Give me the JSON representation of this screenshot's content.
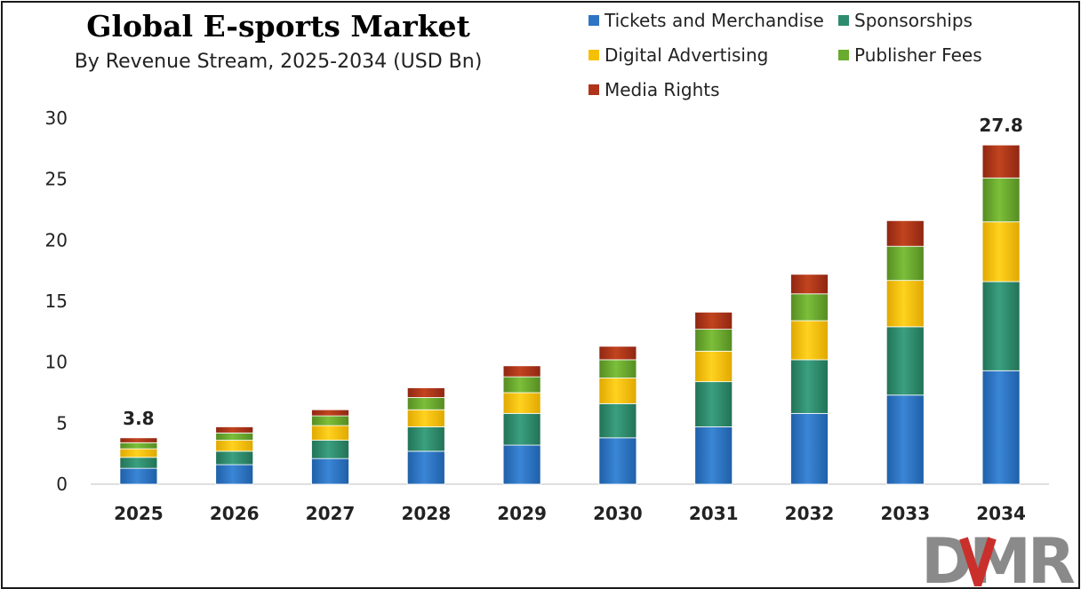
{
  "header": {
    "title": "Global E-sports Market",
    "subtitle": "By Revenue Stream, 2025-2034 (USD Bn)"
  },
  "logo": {
    "text": "DMR"
  },
  "colors": {
    "tickets": "#2e75c4",
    "sponsorships": "#2e8c6e",
    "digital": "#f5c000",
    "publisher": "#6aaa2e",
    "media": "#b0341a"
  },
  "chart_data": {
    "type": "bar",
    "stacked": true,
    "title": "Global E-sports Market",
    "subtitle": "By Revenue Stream, 2025-2034 (USD Bn)",
    "categories": [
      "2025",
      "2026",
      "2027",
      "2028",
      "2029",
      "2030",
      "2031",
      "2032",
      "2033",
      "2034"
    ],
    "series": [
      {
        "name": "Tickets and Merchandise",
        "color": "#2e75c4",
        "values": [
          1.3,
          1.6,
          2.1,
          2.7,
          3.2,
          3.8,
          4.7,
          5.8,
          7.3,
          9.3
        ]
      },
      {
        "name": "Sponsorships",
        "color": "#2e8c6e",
        "values": [
          0.9,
          1.1,
          1.5,
          2.0,
          2.6,
          2.8,
          3.7,
          4.4,
          5.6,
          7.3
        ]
      },
      {
        "name": "Digital Advertising",
        "color": "#f5c000",
        "values": [
          0.7,
          0.9,
          1.2,
          1.4,
          1.7,
          2.1,
          2.5,
          3.2,
          3.8,
          4.9
        ]
      },
      {
        "name": "Publisher Fees",
        "color": "#6aaa2e",
        "values": [
          0.5,
          0.6,
          0.8,
          1.0,
          1.3,
          1.5,
          1.8,
          2.2,
          2.8,
          3.6
        ]
      },
      {
        "name": "Media Rights",
        "color": "#b0341a",
        "values": [
          0.4,
          0.5,
          0.5,
          0.8,
          0.9,
          1.1,
          1.4,
          1.6,
          2.1,
          2.7
        ]
      }
    ],
    "total_labels": [
      {
        "category": "2025",
        "text": "3.8"
      },
      {
        "category": "2034",
        "text": "27.8"
      }
    ],
    "ylim": [
      0,
      30
    ],
    "yticks": [
      "0",
      "5",
      "10",
      "15",
      "20",
      "25",
      "30"
    ],
    "xlabel": "",
    "ylabel": "",
    "grid": false,
    "legend_position": "top-right"
  }
}
